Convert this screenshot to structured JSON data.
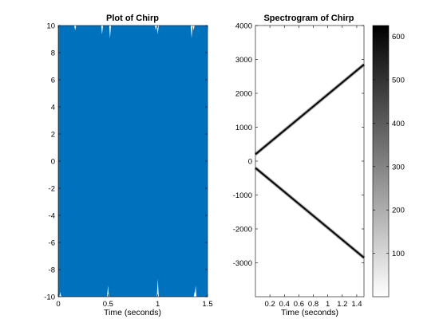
{
  "chart_data": [
    {
      "type": "line",
      "title": "Plot of Chirp",
      "xlabel": "Time (seconds)",
      "ylabel": "",
      "xlim": [
        0,
        1.5
      ],
      "ylim": [
        -10,
        10
      ],
      "x_ticks": [
        "0",
        "0.5",
        "1",
        "1.5"
      ],
      "y_ticks": [
        "-10",
        "-8",
        "-6",
        "-4",
        "-2",
        "0",
        "2",
        "4",
        "6",
        "8",
        "10"
      ],
      "series": [
        {
          "color": "#0072bd",
          "amplitude": 10,
          "x": [
            0,
            1.5
          ],
          "y_range": [
            -10,
            10
          ],
          "gaps_near_top_x": [
            0.17,
            0.44,
            0.52,
            0.98,
            1.0,
            1.34,
            1.36
          ],
          "gaps_near_bottom_x": [
            0.02,
            0.5,
            1.0,
            1.37,
            1.38
          ]
        }
      ]
    },
    {
      "type": "heatmap",
      "title": "Spectrogram of Chirp",
      "xlabel": "Time (seconds)",
      "ylabel": "",
      "xlim": [
        0,
        1.5
      ],
      "ylim": [
        -4000,
        4000
      ],
      "x_ticks": [
        "0.2",
        "0.4",
        "0.6",
        "0.8",
        "1",
        "1.2",
        "1.4"
      ],
      "y_ticks": [
        "-3000",
        "-2000",
        "-1000",
        "0",
        "1000",
        "2000",
        "3000",
        "4000"
      ],
      "colormap": "gray-reversed",
      "ridges": [
        {
          "t_start": 0.0,
          "f_start": 200,
          "t_end": 1.5,
          "f_end": 2850
        },
        {
          "t_start": 0.0,
          "f_start": -200,
          "t_end": 1.5,
          "f_end": -2850
        }
      ],
      "colorbar": {
        "range": [
          0,
          625
        ],
        "ticks": [
          "100",
          "200",
          "300",
          "400",
          "500",
          "600"
        ]
      }
    }
  ]
}
